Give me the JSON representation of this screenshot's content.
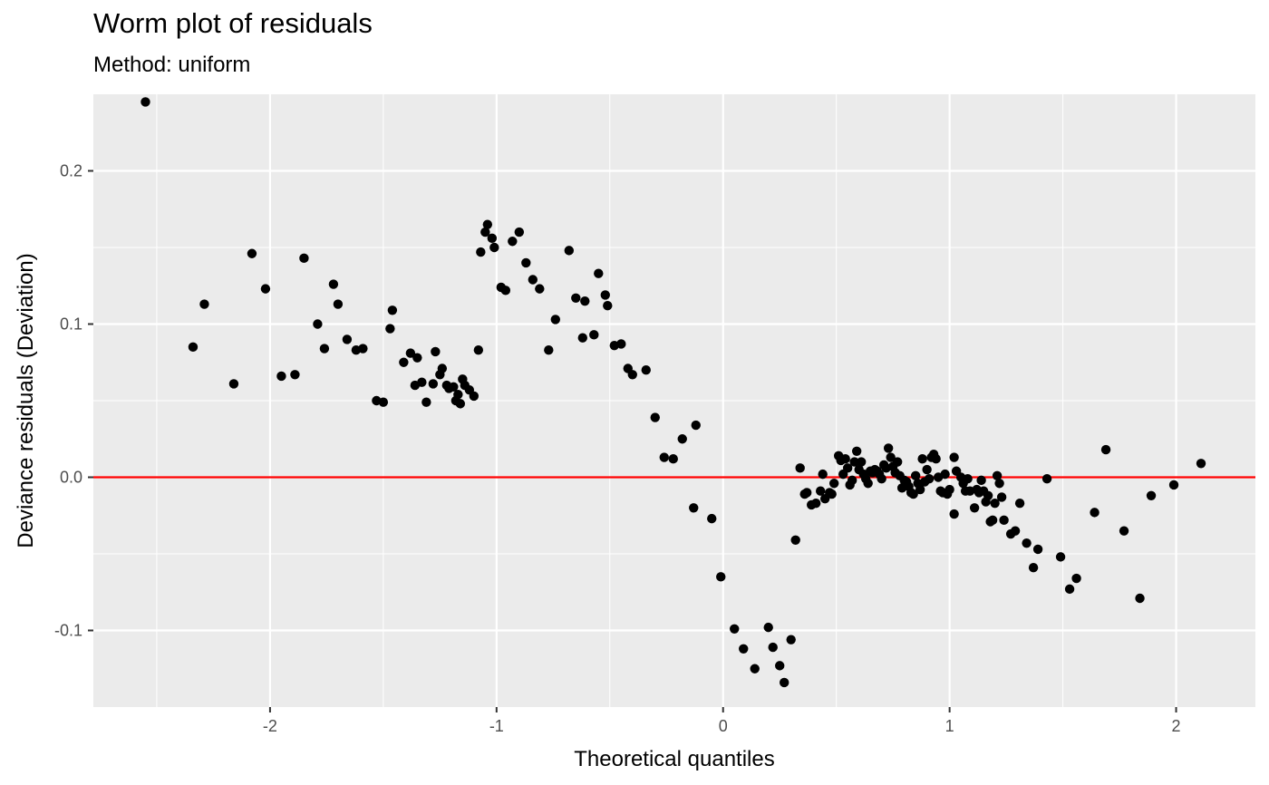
{
  "chart_data": {
    "type": "scatter",
    "title": "Worm plot of residuals",
    "subtitle": "Method: uniform",
    "xlabel": "Theoretical quantiles",
    "ylabel": "Deviance residuals (Deviation)",
    "xlim": [
      -2.78,
      2.35
    ],
    "ylim": [
      -0.15,
      0.25
    ],
    "x_ticks": [
      -2,
      -1,
      0,
      1,
      2
    ],
    "x_tick_labels": [
      "-2",
      "-1",
      "0",
      "1",
      "2"
    ],
    "y_ticks": [
      -0.1,
      0.0,
      0.1,
      0.2
    ],
    "y_tick_labels": [
      "-0.1",
      "0.0",
      "0.1",
      "0.2"
    ],
    "grid": true,
    "panel_background": "#ebebeb",
    "point_color": "#000000",
    "reference_line": {
      "y": 0,
      "color": "#ff0000"
    },
    "points": [
      [
        -2.55,
        0.245
      ],
      [
        -2.34,
        0.085
      ],
      [
        -2.29,
        0.113
      ],
      [
        -2.16,
        0.061
      ],
      [
        -2.08,
        0.146
      ],
      [
        -2.02,
        0.123
      ],
      [
        -1.95,
        0.066
      ],
      [
        -1.89,
        0.067
      ],
      [
        -1.85,
        0.143
      ],
      [
        -1.79,
        0.1
      ],
      [
        -1.76,
        0.084
      ],
      [
        -1.72,
        0.126
      ],
      [
        -1.7,
        0.113
      ],
      [
        -1.66,
        0.09
      ],
      [
        -1.62,
        0.083
      ],
      [
        -1.59,
        0.084
      ],
      [
        -1.53,
        0.05
      ],
      [
        -1.5,
        0.049
      ],
      [
        -1.47,
        0.097
      ],
      [
        -1.46,
        0.109
      ],
      [
        -1.41,
        0.075
      ],
      [
        -1.38,
        0.081
      ],
      [
        -1.36,
        0.06
      ],
      [
        -1.35,
        0.078
      ],
      [
        -1.33,
        0.062
      ],
      [
        -1.31,
        0.049
      ],
      [
        -1.28,
        0.061
      ],
      [
        -1.27,
        0.082
      ],
      [
        -1.25,
        0.067
      ],
      [
        -1.24,
        0.071
      ],
      [
        -1.22,
        0.06
      ],
      [
        -1.21,
        0.058
      ],
      [
        -1.19,
        0.059
      ],
      [
        -1.18,
        0.05
      ],
      [
        -1.17,
        0.054
      ],
      [
        -1.16,
        0.048
      ],
      [
        -1.15,
        0.064
      ],
      [
        -1.14,
        0.06
      ],
      [
        -1.12,
        0.057
      ],
      [
        -1.1,
        0.053
      ],
      [
        -1.08,
        0.083
      ],
      [
        -1.07,
        0.147
      ],
      [
        -1.05,
        0.16
      ],
      [
        -1.04,
        0.165
      ],
      [
        -1.02,
        0.156
      ],
      [
        -1.01,
        0.15
      ],
      [
        -0.98,
        0.124
      ],
      [
        -0.96,
        0.122
      ],
      [
        -0.93,
        0.154
      ],
      [
        -0.9,
        0.16
      ],
      [
        -0.87,
        0.14
      ],
      [
        -0.84,
        0.129
      ],
      [
        -0.81,
        0.123
      ],
      [
        -0.77,
        0.083
      ],
      [
        -0.74,
        0.103
      ],
      [
        -0.68,
        0.148
      ],
      [
        -0.65,
        0.117
      ],
      [
        -0.62,
        0.091
      ],
      [
        -0.61,
        0.115
      ],
      [
        -0.57,
        0.093
      ],
      [
        -0.55,
        0.133
      ],
      [
        -0.52,
        0.119
      ],
      [
        -0.51,
        0.112
      ],
      [
        -0.48,
        0.086
      ],
      [
        -0.45,
        0.087
      ],
      [
        -0.42,
        0.071
      ],
      [
        -0.4,
        0.067
      ],
      [
        -0.34,
        0.07
      ],
      [
        -0.3,
        0.039
      ],
      [
        -0.26,
        0.013
      ],
      [
        -0.22,
        0.012
      ],
      [
        -0.18,
        0.025
      ],
      [
        -0.13,
        -0.02
      ],
      [
        -0.12,
        0.034
      ],
      [
        -0.05,
        -0.027
      ],
      [
        -0.01,
        -0.065
      ],
      [
        0.05,
        -0.099
      ],
      [
        0.09,
        -0.112
      ],
      [
        0.14,
        -0.125
      ],
      [
        0.2,
        -0.098
      ],
      [
        0.22,
        -0.111
      ],
      [
        0.25,
        -0.123
      ],
      [
        0.27,
        -0.134
      ],
      [
        0.3,
        -0.106
      ],
      [
        0.32,
        -0.041
      ],
      [
        0.34,
        0.006
      ],
      [
        0.36,
        -0.011
      ],
      [
        0.37,
        -0.01
      ],
      [
        0.39,
        -0.018
      ],
      [
        0.41,
        -0.017
      ],
      [
        0.43,
        -0.009
      ],
      [
        0.44,
        0.002
      ],
      [
        0.45,
        -0.014
      ],
      [
        0.47,
        -0.01
      ],
      [
        0.48,
        -0.011
      ],
      [
        0.49,
        -0.004
      ],
      [
        0.51,
        0.014
      ],
      [
        0.52,
        0.011
      ],
      [
        0.53,
        0.002
      ],
      [
        0.54,
        0.012
      ],
      [
        0.55,
        0.006
      ],
      [
        0.56,
        -0.005
      ],
      [
        0.57,
        -0.002
      ],
      [
        0.58,
        0.01
      ],
      [
        0.59,
        0.017
      ],
      [
        0.6,
        0.005
      ],
      [
        0.61,
        0.01
      ],
      [
        0.62,
        0.002
      ],
      [
        0.63,
        -0.001
      ],
      [
        0.64,
        -0.004
      ],
      [
        0.65,
        0.004
      ],
      [
        0.66,
        0.003
      ],
      [
        0.67,
        0.005
      ],
      [
        0.68,
        0.004
      ],
      [
        0.69,
        0.002
      ],
      [
        0.7,
        -0.001
      ],
      [
        0.71,
        0.008
      ],
      [
        0.72,
        0.006
      ],
      [
        0.73,
        0.019
      ],
      [
        0.74,
        0.013
      ],
      [
        0.75,
        0.007
      ],
      [
        0.76,
        0.003
      ],
      [
        0.77,
        0.01
      ],
      [
        0.78,
        0.001
      ],
      [
        0.79,
        -0.007
      ],
      [
        0.8,
        -0.002
      ],
      [
        0.81,
        -0.003
      ],
      [
        0.82,
        -0.006
      ],
      [
        0.83,
        -0.01
      ],
      [
        0.84,
        -0.011
      ],
      [
        0.85,
        0.001
      ],
      [
        0.86,
        -0.004
      ],
      [
        0.87,
        -0.008
      ],
      [
        0.88,
        0.012
      ],
      [
        0.89,
        -0.003
      ],
      [
        0.9,
        0.005
      ],
      [
        0.91,
        -0.001
      ],
      [
        0.92,
        0.013
      ],
      [
        0.93,
        0.015
      ],
      [
        0.94,
        0.012
      ],
      [
        0.95,
        0.0
      ],
      [
        0.96,
        -0.009
      ],
      [
        0.97,
        -0.01
      ],
      [
        0.98,
        0.002
      ],
      [
        0.99,
        -0.011
      ],
      [
        1.0,
        -0.008
      ],
      [
        1.02,
        -0.024
      ],
      [
        1.02,
        0.013
      ],
      [
        1.03,
        0.004
      ],
      [
        1.05,
        0.0
      ],
      [
        1.06,
        -0.004
      ],
      [
        1.07,
        -0.009
      ],
      [
        1.08,
        -0.001
      ],
      [
        1.09,
        -0.009
      ],
      [
        1.11,
        -0.02
      ],
      [
        1.12,
        -0.008
      ],
      [
        1.13,
        -0.01
      ],
      [
        1.14,
        -0.002
      ],
      [
        1.15,
        -0.009
      ],
      [
        1.16,
        -0.016
      ],
      [
        1.17,
        -0.012
      ],
      [
        1.18,
        -0.029
      ],
      [
        1.19,
        -0.028
      ],
      [
        1.2,
        -0.017
      ],
      [
        1.21,
        0.001
      ],
      [
        1.22,
        -0.004
      ],
      [
        1.23,
        -0.013
      ],
      [
        1.24,
        -0.028
      ],
      [
        1.27,
        -0.037
      ],
      [
        1.29,
        -0.035
      ],
      [
        1.31,
        -0.017
      ],
      [
        1.34,
        -0.043
      ],
      [
        1.37,
        -0.059
      ],
      [
        1.39,
        -0.047
      ],
      [
        1.43,
        -0.001
      ],
      [
        1.49,
        -0.052
      ],
      [
        1.53,
        -0.073
      ],
      [
        1.56,
        -0.066
      ],
      [
        1.64,
        -0.023
      ],
      [
        1.69,
        0.018
      ],
      [
        1.77,
        -0.035
      ],
      [
        1.84,
        -0.079
      ],
      [
        1.89,
        -0.012
      ],
      [
        1.99,
        -0.005
      ],
      [
        2.11,
        0.009
      ]
    ]
  }
}
